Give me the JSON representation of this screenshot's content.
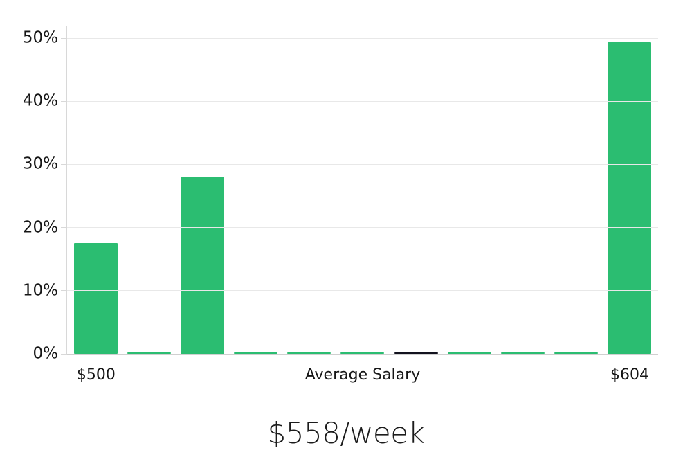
{
  "chart_data": {
    "type": "bar",
    "title": "$558/week",
    "xlabel": "",
    "ylabel": "",
    "ylim": [
      0,
      50
    ],
    "y_ticks": [
      "0%",
      "10%",
      "20%",
      "30%",
      "40%",
      "50%"
    ],
    "x_tick_labels": [
      {
        "text": "$500",
        "position": 0.049
      },
      {
        "text": "Average Salary",
        "position": 0.5
      },
      {
        "text": "$604",
        "position": 0.952
      }
    ],
    "series": [
      {
        "name": "weekly-salary-distribution",
        "values": [
          17.6,
          0.2,
          28.1,
          0.2,
          0.2,
          0.2,
          0.2,
          0.2,
          0.2,
          0.2,
          49.3
        ],
        "bar_colors": [
          "green",
          "green",
          "green",
          "green",
          "green",
          "green",
          "black",
          "green",
          "green",
          "green",
          "green"
        ]
      }
    ],
    "grid": true,
    "legend": false,
    "colors": {
      "green": "#2BBD71",
      "black": "#12121E"
    }
  }
}
